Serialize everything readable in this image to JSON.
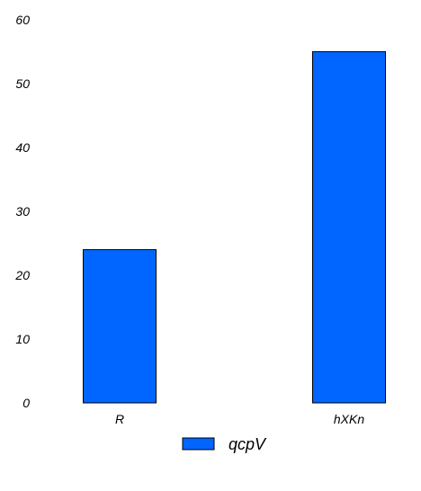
{
  "chart_data": {
    "type": "bar",
    "categories": [
      "R",
      "hXKn"
    ],
    "series": [
      {
        "name": "qcpV",
        "values": [
          24,
          55
        ],
        "color": "#0066ff"
      }
    ],
    "y_ticks": [
      "0",
      "10",
      "20",
      "30",
      "40",
      "50",
      "60"
    ],
    "ylim": [
      0,
      60
    ],
    "title": "",
    "xlabel": "",
    "ylabel": "",
    "grid": false,
    "legend_position": "bottom"
  }
}
